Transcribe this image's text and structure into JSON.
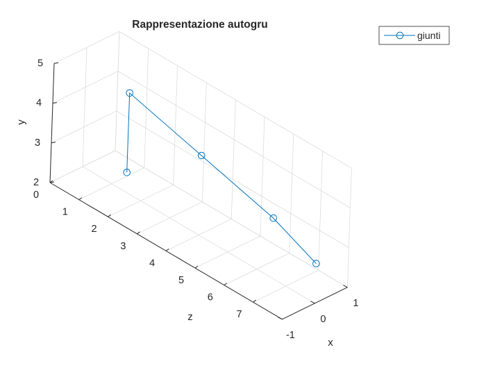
{
  "chart_data": {
    "type": "line",
    "projection": "3d",
    "title": "Rappresentazione autogru",
    "xlabel": "x",
    "ylabel": "y",
    "zlabel": "z",
    "xlim": [
      -1,
      1
    ],
    "ylim": [
      2,
      5
    ],
    "zlim": [
      0,
      8
    ],
    "xticks": [
      "-1",
      "0",
      "1"
    ],
    "yticks": [
      "2",
      "3",
      "4",
      "5"
    ],
    "zticks": [
      "0",
      "1",
      "2",
      "3",
      "4",
      "5",
      "6",
      "7"
    ],
    "grid": true,
    "legend_location": "northeast",
    "color": "#0072BD",
    "marker": "o",
    "series": [
      {
        "name": "giunti",
        "points": [
          {
            "x": 0,
            "y": 2.5,
            "z": 1.5
          },
          {
            "x": 0,
            "y": 4.5,
            "z": 1.5
          },
          {
            "x": 0,
            "y": 4.0,
            "z": 4.0
          },
          {
            "x": 0,
            "y": 3.5,
            "z": 6.5
          },
          {
            "x": 0,
            "y": 3.0,
            "z": 8.0
          }
        ]
      }
    ]
  }
}
